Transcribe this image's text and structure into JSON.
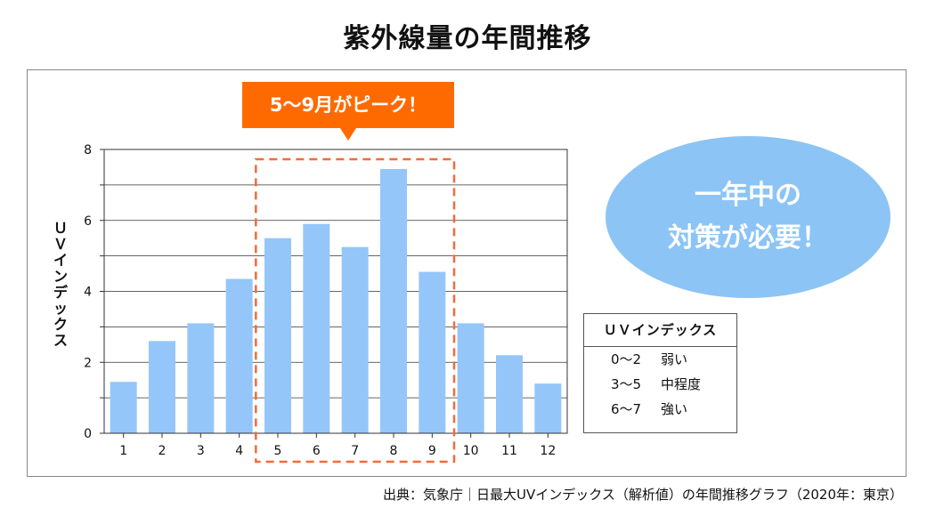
{
  "title": "紫外線量の年間推移",
  "callout": "5～9月がピーク！",
  "bubble": {
    "line1": "一年中の",
    "line2": "対策が必要！"
  },
  "legend": {
    "title": "ＵＶインデックス",
    "items": [
      {
        "range": "0～2",
        "label": "弱い"
      },
      {
        "range": "3～5",
        "label": "中程度"
      },
      {
        "range": "6～7",
        "label": "強い"
      }
    ]
  },
  "source": "出典：気象庁｜日最大UVインデックス（解析値）の年間推移グラフ（2020年：東京）",
  "colors": {
    "bar": "#94c6fa",
    "highlight": "#f26b3a",
    "callout": "#ff6a00",
    "bubble": "#8cc4f5"
  },
  "chart_data": {
    "type": "bar",
    "title": "紫外線量の年間推移",
    "ylabel": "ＵＶインデックス",
    "xlabel": "",
    "categories": [
      "1",
      "2",
      "3",
      "4",
      "5",
      "6",
      "7",
      "8",
      "9",
      "10",
      "11",
      "12"
    ],
    "values": [
      1.45,
      2.6,
      3.1,
      4.35,
      5.5,
      5.9,
      5.25,
      7.45,
      4.55,
      3.1,
      2.2,
      1.4
    ],
    "ylim": [
      0,
      8
    ],
    "yticks": [
      0,
      2,
      4,
      6,
      8
    ],
    "grid": true,
    "highlight_range": [
      "5",
      "9"
    ]
  }
}
